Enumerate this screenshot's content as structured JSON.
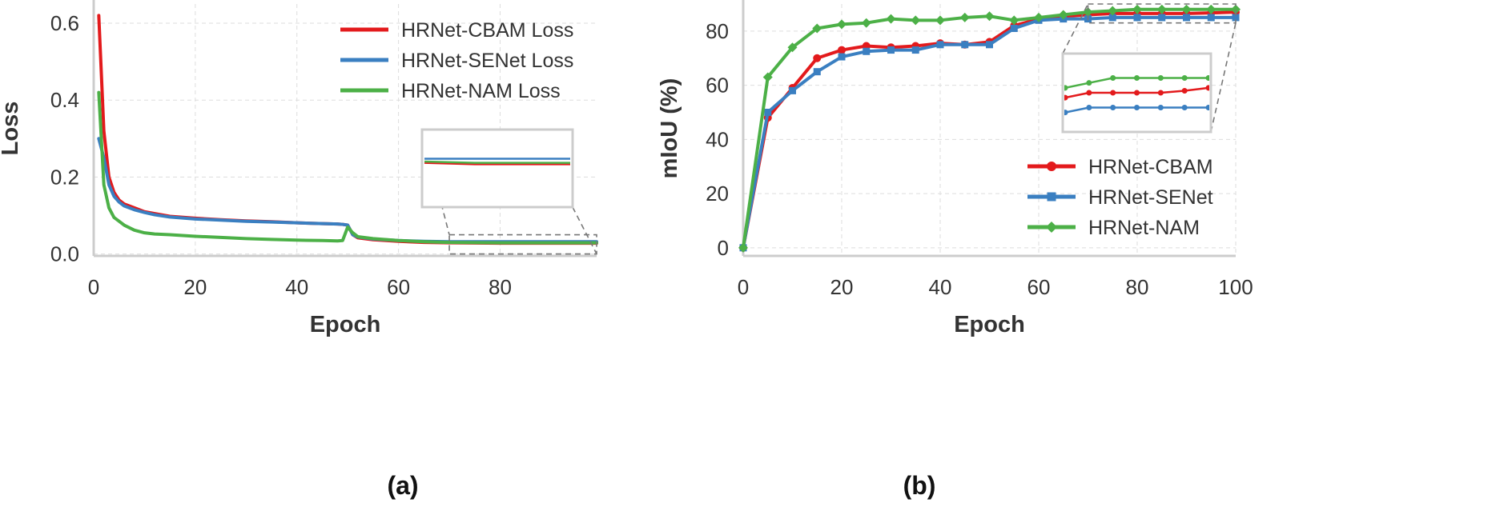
{
  "colors": {
    "red": "#e31a1c",
    "blue": "#3a7fc1",
    "green": "#4cb047",
    "grid": "#dddddd",
    "axis": "#cccccc"
  },
  "chart_data": [
    {
      "id": "a",
      "type": "line",
      "caption": "(a)",
      "title": "",
      "xlabel": "Epoch",
      "ylabel": "Loss",
      "xlim": [
        0,
        99
      ],
      "ylim": [
        -0.005,
        0.65
      ],
      "xticks": [
        "0",
        "20",
        "40",
        "60",
        "80"
      ],
      "xtick_values": [
        0,
        20,
        40,
        60,
        80
      ],
      "yticks": [
        "0.0",
        "0.2",
        "0.4",
        "0.6"
      ],
      "ytick_values": [
        0,
        0.2,
        0.4,
        0.6
      ],
      "grid": true,
      "legend_position": "top-right",
      "inset": {
        "x_range": [
          70,
          99
        ],
        "y_range": [
          0.0,
          0.05
        ]
      },
      "series": [
        {
          "name": "HRNet-CBAM Loss",
          "color_key": "red",
          "x": [
            1,
            2,
            3,
            4,
            5,
            6,
            8,
            10,
            12,
            15,
            20,
            25,
            30,
            35,
            40,
            45,
            48,
            49,
            50,
            51,
            52,
            55,
            60,
            65,
            70,
            80,
            90,
            99
          ],
          "y": [
            0.62,
            0.32,
            0.2,
            0.16,
            0.14,
            0.13,
            0.12,
            0.11,
            0.105,
            0.098,
            0.093,
            0.089,
            0.086,
            0.084,
            0.081,
            0.079,
            0.078,
            0.077,
            0.075,
            0.05,
            0.042,
            0.037,
            0.033,
            0.03,
            0.029,
            0.028,
            0.028,
            0.028
          ]
        },
        {
          "name": "HRNet-SENet Loss",
          "color_key": "blue",
          "x": [
            1,
            2,
            3,
            4,
            5,
            6,
            8,
            10,
            12,
            15,
            20,
            25,
            30,
            35,
            40,
            45,
            48,
            49,
            50,
            51,
            52,
            55,
            60,
            65,
            70,
            80,
            90,
            99
          ],
          "y": [
            0.3,
            0.25,
            0.18,
            0.15,
            0.135,
            0.125,
            0.115,
            0.108,
            0.102,
            0.096,
            0.091,
            0.088,
            0.085,
            0.083,
            0.081,
            0.079,
            0.078,
            0.077,
            0.075,
            0.05,
            0.044,
            0.039,
            0.035,
            0.033,
            0.032,
            0.032,
            0.032,
            0.032
          ]
        },
        {
          "name": "HRNet-NAM Loss",
          "color_key": "green",
          "x": [
            1,
            2,
            3,
            4,
            5,
            6,
            8,
            10,
            12,
            15,
            20,
            25,
            30,
            35,
            40,
            45,
            48,
            49,
            50,
            51,
            52,
            55,
            60,
            65,
            70,
            80,
            90,
            99
          ],
          "y": [
            0.42,
            0.18,
            0.12,
            0.095,
            0.085,
            0.075,
            0.062,
            0.055,
            0.052,
            0.05,
            0.046,
            0.043,
            0.04,
            0.038,
            0.036,
            0.035,
            0.034,
            0.035,
            0.07,
            0.055,
            0.045,
            0.04,
            0.035,
            0.032,
            0.03,
            0.029,
            0.029,
            0.029
          ]
        }
      ]
    },
    {
      "id": "b",
      "type": "line",
      "caption": "(b)",
      "title": "",
      "xlabel": "Epoch",
      "ylabel": "mIoU (%)",
      "xlim": [
        0,
        100
      ],
      "ylim": [
        -3,
        90
      ],
      "xticks": [
        "0",
        "20",
        "40",
        "60",
        "80",
        "100"
      ],
      "xtick_values": [
        0,
        20,
        40,
        60,
        80,
        100
      ],
      "yticks": [
        "0",
        "20",
        "40",
        "60",
        "80"
      ],
      "ytick_values": [
        0,
        20,
        40,
        60,
        80
      ],
      "grid": true,
      "legend_position": "center-right",
      "inset": {
        "x_range": [
          70,
          100
        ],
        "y_range": [
          83,
          90
        ]
      },
      "series": [
        {
          "name": "HRNet-CBAM",
          "color_key": "red",
          "marker": "circle",
          "x": [
            0,
            5,
            10,
            15,
            20,
            25,
            30,
            35,
            40,
            45,
            50,
            55,
            60,
            65,
            70,
            75,
            80,
            85,
            90,
            95,
            100
          ],
          "y": [
            0,
            48,
            59,
            70,
            73,
            74.5,
            74,
            74.5,
            75.5,
            75,
            76,
            82,
            84.5,
            85.5,
            86,
            86.5,
            86.5,
            86.5,
            86.5,
            86.7,
            87
          ]
        },
        {
          "name": "HRNet-SENet",
          "color_key": "blue",
          "marker": "square",
          "x": [
            0,
            5,
            10,
            15,
            20,
            25,
            30,
            35,
            40,
            45,
            50,
            55,
            60,
            65,
            70,
            75,
            80,
            85,
            90,
            95,
            100
          ],
          "y": [
            0,
            50,
            58,
            65,
            70.5,
            72.5,
            73,
            73,
            75,
            75,
            75,
            81,
            84,
            84.5,
            84.5,
            85,
            85,
            85,
            85,
            85,
            85
          ]
        },
        {
          "name": "HRNet-NAM",
          "color_key": "green",
          "marker": "diamond",
          "x": [
            0,
            5,
            10,
            15,
            20,
            25,
            30,
            35,
            40,
            45,
            50,
            55,
            60,
            65,
            70,
            75,
            80,
            85,
            90,
            95,
            100
          ],
          "y": [
            0,
            63,
            74,
            81,
            82.5,
            83,
            84.5,
            84,
            84,
            85,
            85.5,
            84,
            85,
            86,
            87,
            87.5,
            88,
            88,
            88,
            88,
            88
          ]
        }
      ]
    }
  ]
}
